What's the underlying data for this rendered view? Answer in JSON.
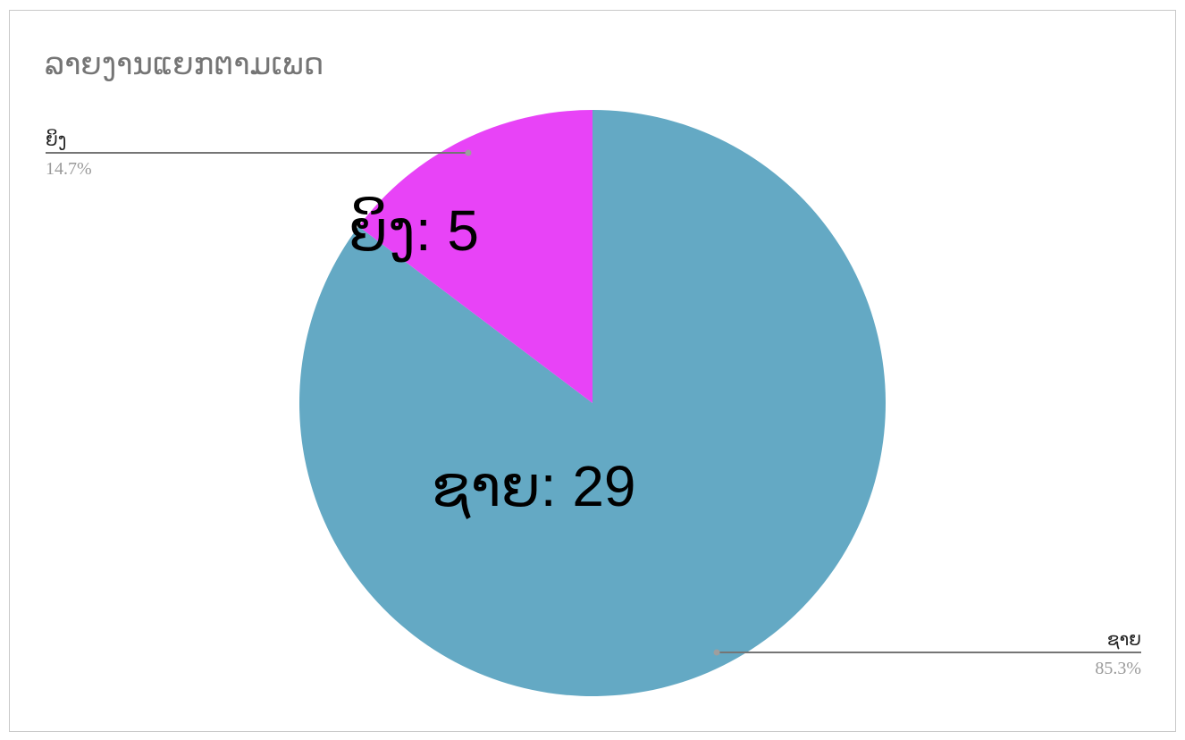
{
  "chart_data": {
    "type": "pie",
    "title": "ລາຍງານແຍກຕາມເພດ",
    "slices": [
      {
        "label": "ຊາຍ",
        "value": 29,
        "percent_label": "85.3%",
        "inner_label": "ຊາຍ: 29",
        "color": "#64a9c4"
      },
      {
        "label": "ຍິງ",
        "value": 5,
        "percent_label": "14.7%",
        "inner_label": "ຍິງ: 5",
        "color": "#e843f7"
      }
    ]
  },
  "colors": {
    "leader_line": "#757575",
    "leader_dot": "#9e9e9e",
    "frame_border": "#c9c9c9"
  }
}
